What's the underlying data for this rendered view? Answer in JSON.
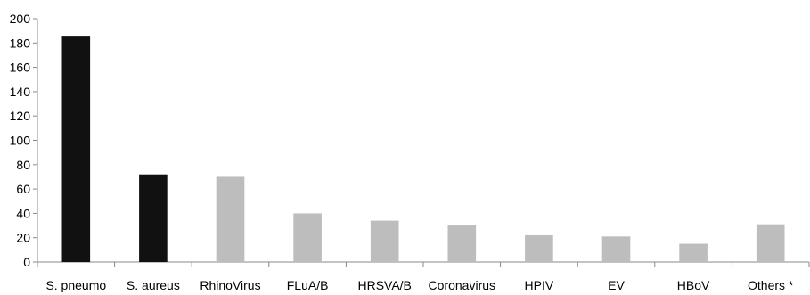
{
  "chart_data": {
    "type": "bar",
    "title": "",
    "xlabel": "",
    "ylabel": "",
    "categories": [
      "S. pneumo",
      "S. aureus",
      "RhinoVirus",
      "FLuA/B",
      "HRSVA/B",
      "Coronavirus",
      "HPIV",
      "EV",
      "HBoV",
      "Others *"
    ],
    "values": [
      186,
      72,
      70,
      40,
      34,
      30,
      22,
      21,
      15,
      31
    ],
    "bar_colors": [
      "#111111",
      "#111111",
      "#bdbdbd",
      "#bdbdbd",
      "#bdbdbd",
      "#bdbdbd",
      "#bdbdbd",
      "#bdbdbd",
      "#bdbdbd",
      "#bdbdbd"
    ],
    "ylim": [
      0,
      200
    ],
    "yticks": [
      0,
      20,
      40,
      60,
      80,
      100,
      120,
      140,
      160,
      180,
      200
    ],
    "grid": false,
    "legend": "none"
  }
}
